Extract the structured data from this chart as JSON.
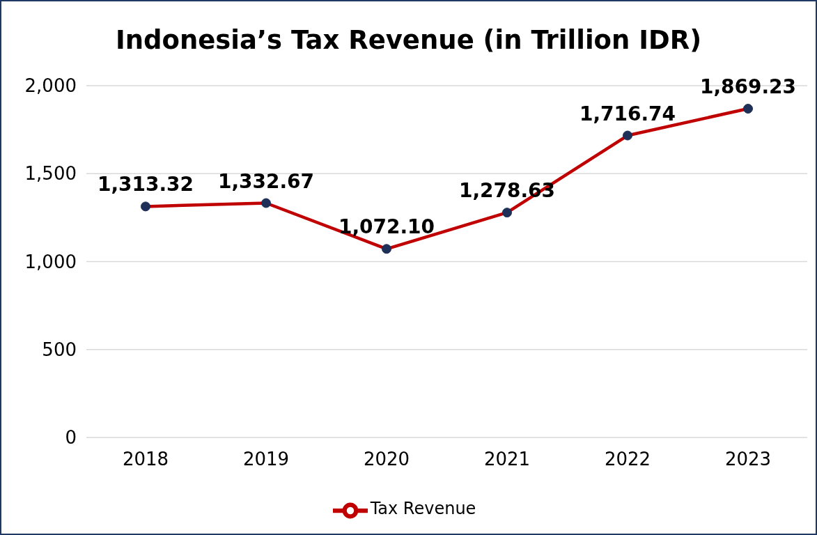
{
  "chart_data": {
    "type": "line",
    "title": "Indonesia’s Tax Revenue (in Trillion IDR)",
    "categories": [
      "2018",
      "2019",
      "2020",
      "2021",
      "2022",
      "2023"
    ],
    "series": [
      {
        "name": "Tax Revenue",
        "color": "#c00000",
        "values": [
          1313.32,
          1332.67,
          1072.1,
          1278.63,
          1716.74,
          1869.23
        ],
        "value_labels": [
          "1,313.32",
          "1,332.67",
          "1,072.10",
          "1,278.63",
          "1,716.74",
          "1,869.23"
        ]
      }
    ],
    "ylim": [
      0,
      2000
    ],
    "yticks": [
      0,
      {
        "value": 500,
        "label": "500"
      },
      {
        "value": 1000,
        "label": "1,000"
      },
      {
        "value": 1500,
        "label": "1,500"
      },
      {
        "value": 2000,
        "label": "2,000"
      }
    ],
    "grid": "y",
    "legend": "bottom",
    "marker": "circle",
    "line_style": "solid"
  }
}
